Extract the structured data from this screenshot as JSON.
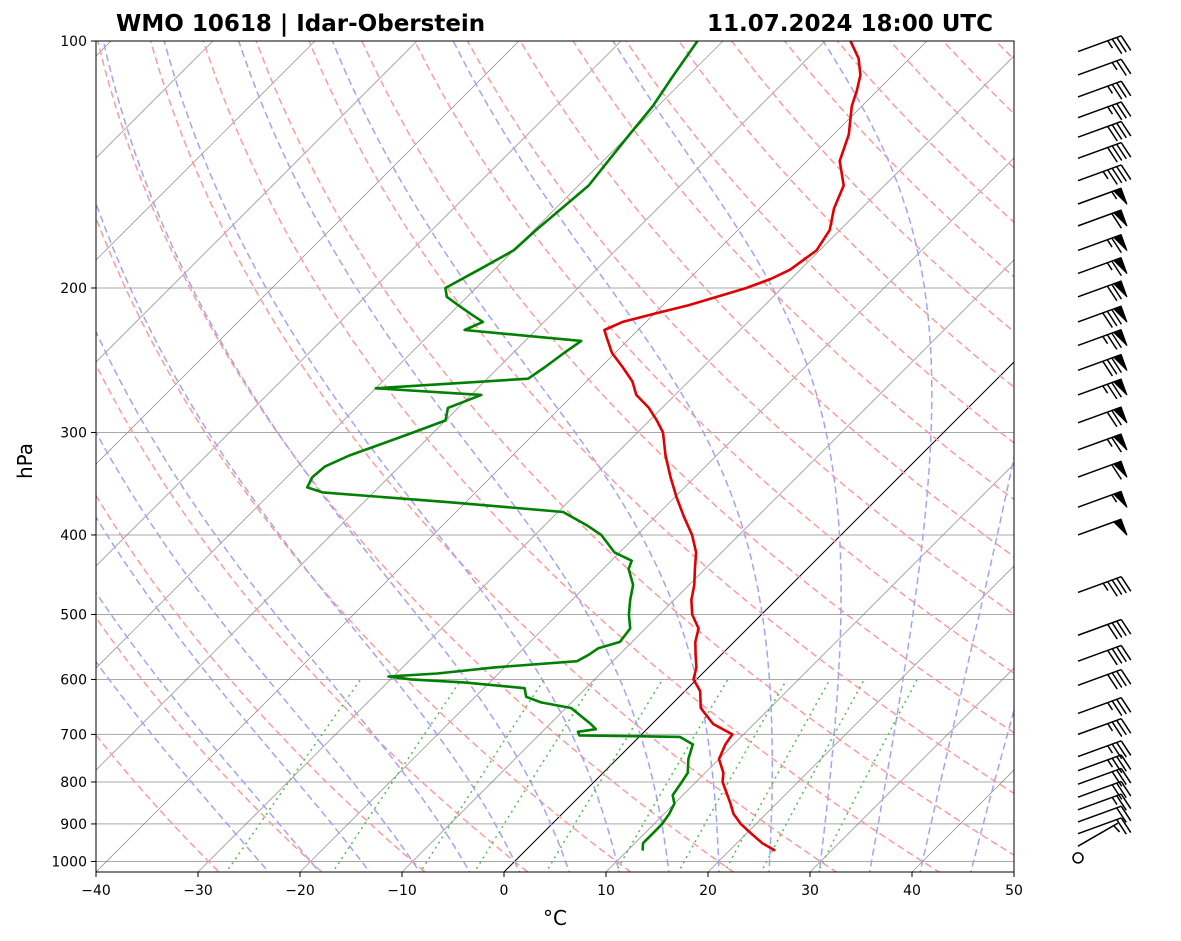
{
  "chart_data": {
    "type": "skew-t log-p sounding",
    "title_left": "WMO 10618 | Idar-Oberstein",
    "title_right": "11.07.2024 18:00 UTC",
    "xlabel": "°C",
    "ylabel": "hPa",
    "xlim": [
      -40,
      50
    ],
    "ylim": [
      1030,
      100
    ],
    "x_ticks": [
      -40,
      -30,
      -20,
      -10,
      0,
      10,
      20,
      30,
      40,
      50
    ],
    "x_tick_labels": [
      "−40",
      "−30",
      "−20",
      "−10",
      "0",
      "10",
      "20",
      "30",
      "40",
      "50"
    ],
    "y_ticks": [
      1000,
      900,
      800,
      700,
      600,
      500,
      400,
      300,
      200,
      100
    ],
    "y_tick_labels": [
      "1000",
      "900",
      "800",
      "700",
      "600",
      "500",
      "400",
      "300",
      "200",
      "100"
    ],
    "skew": "isotherms tilted 45° to the right",
    "highlighted_isotherm_c": 0,
    "colors": {
      "temperature": "#e00000",
      "dewpoint": "#008000",
      "dry_adiabats": "#ff9b9b",
      "moist_adiabats": "#a3a3f5",
      "mixing_ratio": "#55bb55",
      "isotherms": "#808080",
      "isobars": "#a8a8a8"
    },
    "series": [
      {
        "key": "temperature",
        "points": [
          [
            970,
            24.5
          ],
          [
            950,
            22.5
          ],
          [
            925,
            20.5
          ],
          [
            900,
            18.5
          ],
          [
            875,
            16.8
          ],
          [
            850,
            15.5
          ],
          [
            800,
            12.6
          ],
          [
            780,
            11.8
          ],
          [
            750,
            10.0
          ],
          [
            720,
            9.2
          ],
          [
            700,
            8.9
          ],
          [
            680,
            6.0
          ],
          [
            650,
            3.2
          ],
          [
            620,
            1.5
          ],
          [
            600,
            -0.3
          ],
          [
            580,
            -1.2
          ],
          [
            560,
            -2.5
          ],
          [
            540,
            -3.8
          ],
          [
            520,
            -4.8
          ],
          [
            500,
            -6.8
          ],
          [
            480,
            -8.3
          ],
          [
            460,
            -9.5
          ],
          [
            440,
            -11.0
          ],
          [
            420,
            -12.5
          ],
          [
            400,
            -14.6
          ],
          [
            380,
            -17.2
          ],
          [
            360,
            -19.8
          ],
          [
            340,
            -22.4
          ],
          [
            320,
            -25.0
          ],
          [
            300,
            -27.5
          ],
          [
            290,
            -29.3
          ],
          [
            280,
            -31.3
          ],
          [
            270,
            -33.8
          ],
          [
            260,
            -35.5
          ],
          [
            250,
            -37.8
          ],
          [
            240,
            -40.3
          ],
          [
            230,
            -42.3
          ],
          [
            225,
            -43.3
          ],
          [
            220,
            -42.3
          ],
          [
            215,
            -40.0
          ],
          [
            210,
            -37.5
          ],
          [
            205,
            -35.5
          ],
          [
            200,
            -33.5
          ],
          [
            195,
            -32.0
          ],
          [
            190,
            -31.0
          ],
          [
            180,
            -30.3
          ],
          [
            170,
            -31.0
          ],
          [
            160,
            -32.7
          ],
          [
            150,
            -34.0
          ],
          [
            140,
            -36.8
          ],
          [
            130,
            -38.5
          ],
          [
            120,
            -41.0
          ],
          [
            115,
            -42.0
          ],
          [
            110,
            -43.2
          ],
          [
            105,
            -45.0
          ],
          [
            100,
            -47.5
          ]
        ]
      },
      {
        "key": "dewpoint",
        "points": [
          [
            970,
            11.5
          ],
          [
            950,
            10.8
          ],
          [
            925,
            10.8
          ],
          [
            900,
            10.8
          ],
          [
            875,
            10.5
          ],
          [
            850,
            10.0
          ],
          [
            830,
            9.0
          ],
          [
            800,
            8.6
          ],
          [
            780,
            8.3
          ],
          [
            750,
            7.0
          ],
          [
            720,
            6.0
          ],
          [
            705,
            4.0
          ],
          [
            702,
            -6.0
          ],
          [
            695,
            -6.5
          ],
          [
            690,
            -5.0
          ],
          [
            680,
            -6.0
          ],
          [
            650,
            -9.5
          ],
          [
            640,
            -13.0
          ],
          [
            630,
            -15.0
          ],
          [
            615,
            -16.0
          ],
          [
            605,
            -22.5
          ],
          [
            600,
            -28.0
          ],
          [
            595,
            -30.5
          ],
          [
            590,
            -26.0
          ],
          [
            580,
            -21.0
          ],
          [
            570,
            -13.5
          ],
          [
            560,
            -13.0
          ],
          [
            550,
            -12.7
          ],
          [
            540,
            -11.2
          ],
          [
            520,
            -11.5
          ],
          [
            500,
            -13.0
          ],
          [
            480,
            -14.3
          ],
          [
            460,
            -15.5
          ],
          [
            440,
            -17.5
          ],
          [
            430,
            -18.0
          ],
          [
            420,
            -20.5
          ],
          [
            400,
            -23.5
          ],
          [
            390,
            -25.7
          ],
          [
            375,
            -29.5
          ],
          [
            365,
            -41.5
          ],
          [
            355,
            -55.0
          ],
          [
            350,
            -57.0
          ],
          [
            340,
            -57.5
          ],
          [
            330,
            -57.3
          ],
          [
            320,
            -56.0
          ],
          [
            310,
            -54.0
          ],
          [
            300,
            -52.0
          ],
          [
            290,
            -50.0
          ],
          [
            280,
            -51.0
          ],
          [
            270,
            -49.0
          ],
          [
            265,
            -60.0
          ],
          [
            258,
            -46.0
          ],
          [
            250,
            -45.5
          ],
          [
            240,
            -45.0
          ],
          [
            232,
            -44.5
          ],
          [
            225,
            -57.0
          ],
          [
            220,
            -56.0
          ],
          [
            215,
            -58.0
          ],
          [
            210,
            -60.0
          ],
          [
            205,
            -62.0
          ],
          [
            200,
            -63.0
          ],
          [
            190,
            -61.5
          ],
          [
            180,
            -60.0
          ],
          [
            170,
            -59.8
          ],
          [
            160,
            -59.4
          ],
          [
            150,
            -59.0
          ],
          [
            140,
            -59.5
          ],
          [
            130,
            -60.0
          ],
          [
            120,
            -60.5
          ],
          [
            110,
            -61.5
          ],
          [
            100,
            -62.5
          ]
        ]
      }
    ],
    "wind_barbs": [
      {
        "p": 990,
        "calm": true
      },
      {
        "p": 958,
        "dir": 240,
        "kt": 5
      },
      {
        "p": 925,
        "dir": 250,
        "kt": 20
      },
      {
        "p": 895,
        "dir": 250,
        "kt": 20
      },
      {
        "p": 865,
        "dir": 250,
        "kt": 25
      },
      {
        "p": 835,
        "dir": 250,
        "kt": 30
      },
      {
        "p": 805,
        "dir": 250,
        "kt": 30
      },
      {
        "p": 775,
        "dir": 250,
        "kt": 35
      },
      {
        "p": 745,
        "dir": 250,
        "kt": 35
      },
      {
        "p": 700,
        "dir": 250,
        "kt": 35
      },
      {
        "p": 660,
        "dir": 250,
        "kt": 35
      },
      {
        "p": 610,
        "dir": 250,
        "kt": 40
      },
      {
        "p": 570,
        "dir": 250,
        "kt": 40
      },
      {
        "p": 530,
        "dir": 250,
        "kt": 40
      },
      {
        "p": 470,
        "dir": 250,
        "kt": 45
      },
      {
        "p": 400,
        "dir": 250,
        "kt": 50
      },
      {
        "p": 370,
        "dir": 250,
        "kt": 55
      },
      {
        "p": 340,
        "dir": 250,
        "kt": 60
      },
      {
        "p": 315,
        "dir": 250,
        "kt": 65
      },
      {
        "p": 292,
        "dir": 250,
        "kt": 70
      },
      {
        "p": 270,
        "dir": 250,
        "kt": 75
      },
      {
        "p": 252,
        "dir": 250,
        "kt": 80
      },
      {
        "p": 235,
        "dir": 250,
        "kt": 75
      },
      {
        "p": 220,
        "dir": 250,
        "kt": 80
      },
      {
        "p": 205,
        "dir": 250,
        "kt": 70
      },
      {
        "p": 192,
        "dir": 250,
        "kt": 65
      },
      {
        "p": 180,
        "dir": 250,
        "kt": 65
      },
      {
        "p": 168,
        "dir": 250,
        "kt": 60
      },
      {
        "p": 158,
        "dir": 250,
        "kt": 55
      },
      {
        "p": 148,
        "dir": 250,
        "kt": 45
      },
      {
        "p": 139,
        "dir": 250,
        "kt": 40
      },
      {
        "p": 131,
        "dir": 250,
        "kt": 40
      },
      {
        "p": 124,
        "dir": 250,
        "kt": 35
      },
      {
        "p": 117,
        "dir": 250,
        "kt": 35
      },
      {
        "p": 110,
        "dir": 250,
        "kt": 25
      },
      {
        "p": 103,
        "dir": 250,
        "kt": 35
      }
    ]
  }
}
